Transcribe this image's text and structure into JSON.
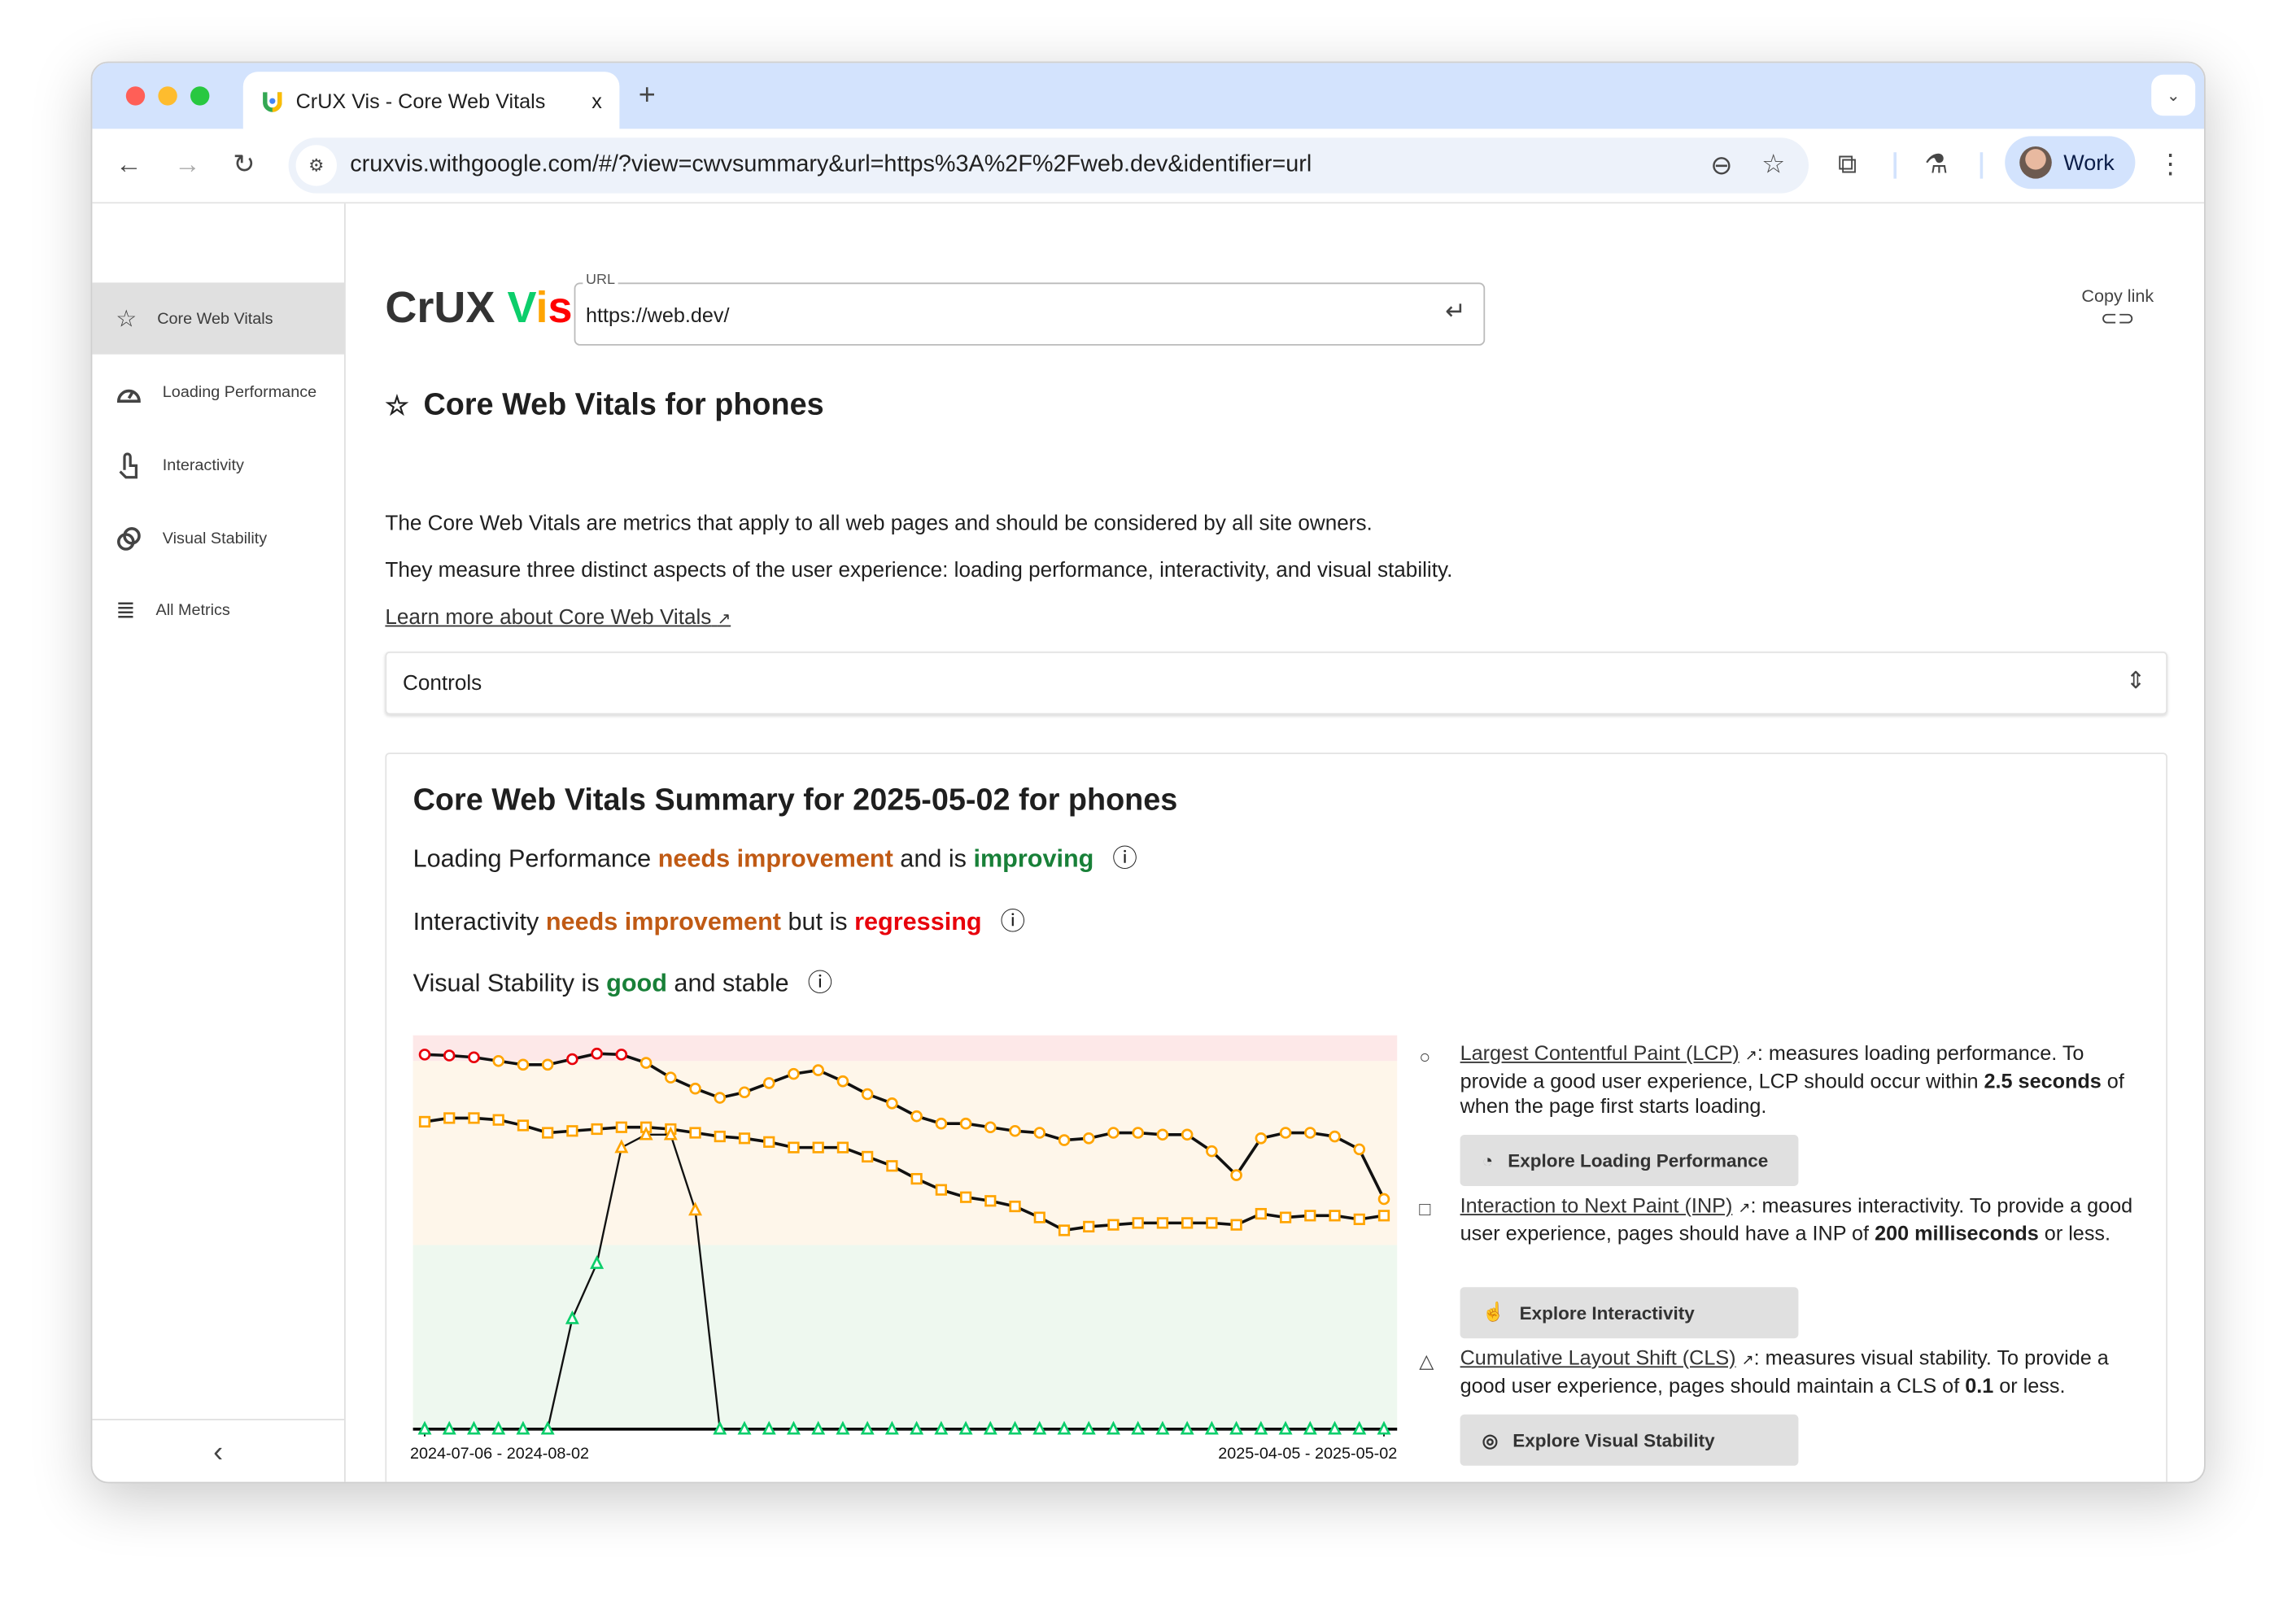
{
  "browser": {
    "tab_title": "CrUX Vis - Core Web Vitals",
    "tab_close": "x",
    "new_tab": "+",
    "url": "cruxvis.withgoogle.com/#/?view=cwvsummary&url=https%3A%2F%2Fweb.dev&identifier=url",
    "profile_label": "Work"
  },
  "sidebar": {
    "items": [
      {
        "label": "Core Web Vitals",
        "icon": "star-icon",
        "active": true
      },
      {
        "label": "Loading Performance",
        "icon": "speedometer-icon"
      },
      {
        "label": "Interactivity",
        "icon": "touch-icon"
      },
      {
        "label": "Visual Stability",
        "icon": "rings-icon"
      },
      {
        "label": "All Metrics",
        "icon": "list-icon"
      }
    ],
    "collapse": "‹"
  },
  "logo": {
    "crux": "CrUX",
    "v": "V",
    "i": "i",
    "s": "s",
    "colors": {
      "v": "#0cce6b",
      "i": "#ffa400",
      "s": "#ff0000"
    }
  },
  "url_field": {
    "label": "URL",
    "value": "https://web.dev/"
  },
  "copy_link": "Copy link",
  "page": {
    "title": "Core Web Vitals for phones",
    "p1": "The Core Web Vitals are metrics that apply to all web pages and should be considered by all site owners.",
    "p2": "They measure three distinct aspects of the user experience: loading performance, interactivity, and visual stability.",
    "learn_more": "Learn more about Core Web Vitals",
    "controls": "Controls"
  },
  "summary": {
    "title": "Core Web Vitals Summary for 2025-05-02 for phones",
    "lines": [
      {
        "a": "Loading Performance ",
        "b": "needs improvement",
        "c": " and is ",
        "d": "improving"
      },
      {
        "a": "Interactivity ",
        "b": "needs improvement",
        "c": " but is ",
        "d": "regressing"
      },
      {
        "a": "Visual Stability is ",
        "b": "good",
        "c": " and stable",
        "d": ""
      }
    ]
  },
  "legend": [
    {
      "marker": "circle",
      "link": "Largest Contentful Paint (LCP)",
      "pre": ": measures loading performance. To provide a good user experience, LCP should occur within ",
      "bold": "2.5 seconds",
      "post": " of when the page first starts loading.",
      "button": "Explore Loading Performance"
    },
    {
      "marker": "square",
      "link": "Interaction to Next Paint (INP)",
      "pre": ": measures interactivity. To provide a good user experience, pages should have a INP of ",
      "bold": "200 milliseconds",
      "post": " or less.",
      "button": "Explore Interactivity"
    },
    {
      "marker": "triangle",
      "link": "Cumulative Layout Shift (CLS)",
      "pre": ": measures visual stability. To provide a good user experience, pages should maintain a CLS of ",
      "bold": "0.1",
      "post": " or less.",
      "button": "Explore Visual Stability"
    }
  ],
  "chart_data": {
    "type": "line",
    "x_start_label": "2024-07-06 - 2024-08-02",
    "x_end_label": "2025-04-05 - 2025-05-02",
    "ylim": [
      0,
      2.14
    ],
    "bands": [
      {
        "name": "good",
        "to": 1,
        "color": "#eef8ef"
      },
      {
        "name": "needs improvement",
        "to": 2,
        "color": "#fef6ea"
      },
      {
        "name": "poor",
        "to": 2.14,
        "color": "#fde8e8"
      }
    ],
    "status_colors": {
      "good": "#0cce6b",
      "ni": "#ffa400",
      "poor": "#e8000b"
    },
    "series": [
      {
        "marker": "circle",
        "values": [
          2.035,
          2.03,
          2.02,
          2.0,
          1.98,
          1.98,
          2.01,
          2.04,
          2.035,
          1.99,
          1.91,
          1.85,
          1.8,
          1.83,
          1.88,
          1.93,
          1.95,
          1.89,
          1.82,
          1.77,
          1.7,
          1.66,
          1.66,
          1.64,
          1.62,
          1.61,
          1.57,
          1.58,
          1.61,
          1.61,
          1.6,
          1.6,
          1.51,
          1.38,
          1.58,
          1.61,
          1.61,
          1.59,
          1.52,
          1.25
        ]
      },
      {
        "marker": "square",
        "values": [
          1.67,
          1.69,
          1.69,
          1.68,
          1.65,
          1.61,
          1.62,
          1.63,
          1.64,
          1.64,
          1.63,
          1.61,
          1.59,
          1.58,
          1.56,
          1.53,
          1.53,
          1.53,
          1.48,
          1.43,
          1.36,
          1.3,
          1.26,
          1.24,
          1.21,
          1.15,
          1.08,
          1.1,
          1.11,
          1.12,
          1.12,
          1.12,
          1.12,
          1.11,
          1.17,
          1.15,
          1.16,
          1.16,
          1.14,
          1.16
        ]
      },
      {
        "marker": "triangle",
        "values": [
          0,
          0,
          0,
          0,
          0,
          0,
          0.6,
          0.9,
          1.53,
          1.6,
          1.6,
          1.19,
          0,
          0,
          0,
          0,
          0,
          0,
          0,
          0,
          0,
          0,
          0,
          0,
          0,
          0,
          0,
          0,
          0,
          0,
          0,
          0,
          0,
          0,
          0,
          0,
          0,
          0,
          0,
          0
        ]
      }
    ]
  }
}
